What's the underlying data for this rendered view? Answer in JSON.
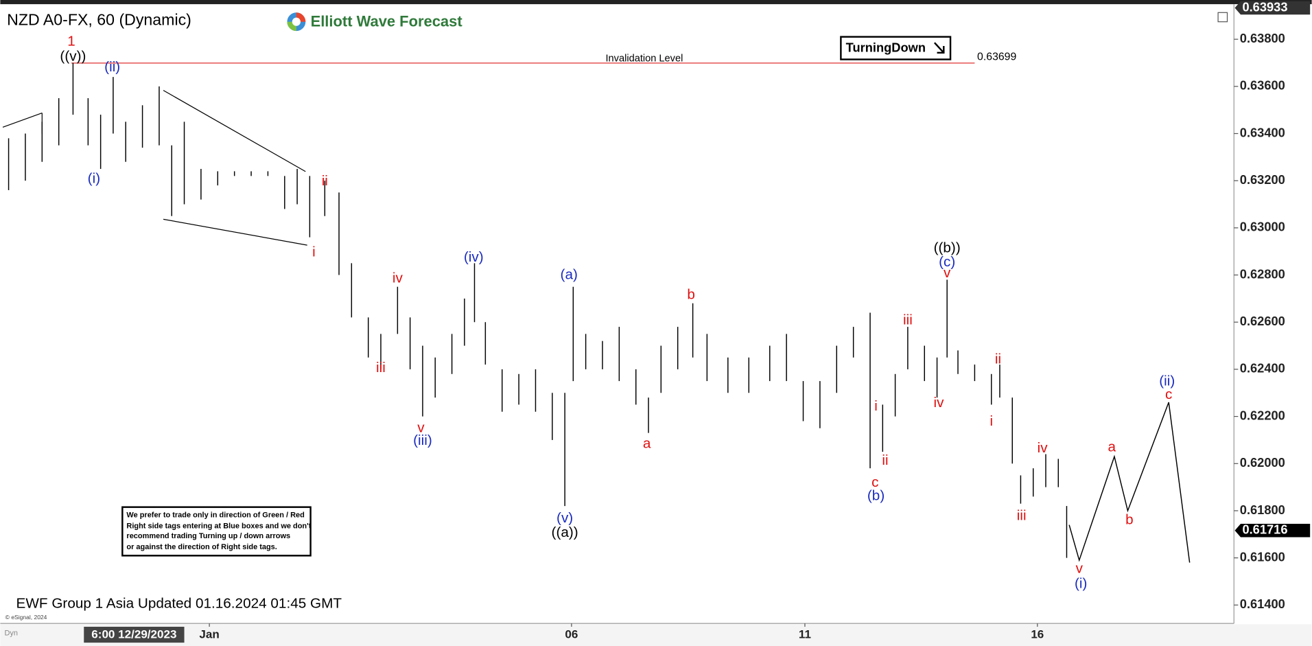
{
  "chart_data": {
    "type": "ohlc",
    "title": "NZD A0-FX, 60 (Dynamic)",
    "brand": "Elliott Wave Forecast",
    "signal": "TurningDown",
    "updated": "EWF Group 1 Asia Updated 01.16.2024 01:45 GMT",
    "copyright": "© eSignal, 2024",
    "mode": "Dyn",
    "cursor_time": "6:00 12/29/2023",
    "note": [
      "We prefer to trade only in direction of Green / Red",
      "Right side tags entering at Blue boxes and we don't",
      "recommend trading Turning up / down arrows",
      "or against the direction of Right side tags."
    ],
    "xlim": [
      0,
      147.5
    ],
    "ylim": [
      0.61322,
      0.63931
    ],
    "xticks": [
      {
        "value": 25,
        "label": "Jan"
      },
      {
        "value": 68.3,
        "label": "06"
      },
      {
        "value": 96.2,
        "label": "11"
      },
      {
        "value": 124,
        "label": "16"
      }
    ],
    "yticks": [
      {
        "value": 0.614,
        "label": "0.61400"
      },
      {
        "value": 0.616,
        "label": "0.61600"
      },
      {
        "value": 0.618,
        "label": "0.61800"
      },
      {
        "value": 0.62,
        "label": "0.62000"
      },
      {
        "value": 0.622,
        "label": "0.62200"
      },
      {
        "value": 0.624,
        "label": "0.62400"
      },
      {
        "value": 0.626,
        "label": "0.62600"
      },
      {
        "value": 0.628,
        "label": "0.62800"
      },
      {
        "value": 0.63,
        "label": "0.63000"
      },
      {
        "value": 0.632,
        "label": "0.63200"
      },
      {
        "value": 0.634,
        "label": "0.63400"
      },
      {
        "value": 0.636,
        "label": "0.63600"
      },
      {
        "value": 0.638,
        "label": "0.63800"
      }
    ],
    "price_markers": [
      {
        "value": 0.63933,
        "label": "0.63933"
      },
      {
        "value": 0.61716,
        "label": "0.61716"
      }
    ],
    "invalidation": {
      "text": "Invalidation Level",
      "value": 0.63699,
      "label": "0.63699",
      "color": "#e03030"
    },
    "series": [
      {
        "color": "#000000",
        "x": [
          1,
          3,
          5,
          7,
          8.7,
          10.5,
          12,
          13.5,
          15,
          17,
          19,
          20.5,
          22,
          24,
          26,
          28,
          30,
          32,
          34,
          35.5,
          37,
          38.8,
          40.5,
          42,
          44,
          45.5,
          47.5,
          49,
          50.5,
          52,
          54,
          55.5,
          56.7,
          58,
          60,
          62,
          64,
          66,
          67.5,
          68.5,
          70,
          72,
          74,
          76,
          77.5,
          79,
          81,
          82.8,
          84.5,
          87,
          89.5,
          92,
          94,
          96,
          98,
          100,
          102,
          104,
          105.5,
          107,
          108.5,
          110.5,
          112,
          113.2,
          114.5,
          116.5,
          118.5,
          119.5,
          121,
          122,
          123.5,
          125,
          126.5,
          127.5
        ],
        "high": [
          0.6338,
          0.634,
          0.6345,
          0.6355,
          0.637,
          0.6355,
          0.6348,
          0.6364,
          0.6345,
          0.6352,
          0.636,
          0.6335,
          0.6345,
          0.6325,
          0.6324,
          0.6324,
          0.6324,
          0.6324,
          0.6322,
          0.6325,
          0.6322,
          0.632,
          0.6315,
          0.6285,
          0.6262,
          0.6255,
          0.6275,
          0.6262,
          0.625,
          0.6245,
          0.6255,
          0.627,
          0.6285,
          0.626,
          0.624,
          0.6238,
          0.624,
          0.623,
          0.623,
          0.6275,
          0.6255,
          0.6252,
          0.6258,
          0.624,
          0.6228,
          0.625,
          0.6258,
          0.6268,
          0.6255,
          0.6245,
          0.6245,
          0.625,
          0.6255,
          0.6235,
          0.6235,
          0.625,
          0.6258,
          0.6264,
          0.6225,
          0.6238,
          0.6258,
          0.625,
          0.6245,
          0.6278,
          0.6248,
          0.6242,
          0.6238,
          0.6242,
          0.6228,
          0.6195,
          0.6198,
          0.6204,
          0.6202,
          0.6182
        ],
        "low": [
          0.6316,
          0.632,
          0.6328,
          0.6335,
          0.6348,
          0.6335,
          0.6325,
          0.634,
          0.6328,
          0.6334,
          0.6335,
          0.6305,
          0.631,
          0.6312,
          0.6318,
          0.6322,
          0.6322,
          0.6322,
          0.6308,
          0.631,
          0.6296,
          0.6305,
          0.628,
          0.6262,
          0.6245,
          0.624,
          0.6255,
          0.624,
          0.622,
          0.6228,
          0.6238,
          0.625,
          0.626,
          0.6242,
          0.6222,
          0.6225,
          0.6222,
          0.621,
          0.6182,
          0.6235,
          0.624,
          0.624,
          0.6235,
          0.6225,
          0.6213,
          0.623,
          0.624,
          0.6245,
          0.6235,
          0.623,
          0.623,
          0.6235,
          0.6235,
          0.6218,
          0.6215,
          0.623,
          0.6245,
          0.6198,
          0.6205,
          0.622,
          0.624,
          0.6235,
          0.6228,
          0.6245,
          0.6238,
          0.6235,
          0.6225,
          0.6228,
          0.62,
          0.6183,
          0.6186,
          0.619,
          0.619,
          0.616
        ]
      }
    ],
    "projection": {
      "color": "#000000",
      "x": [
        127.8,
        129,
        133.2,
        134.8,
        139.7,
        142.2
      ],
      "values": [
        0.6174,
        0.6159,
        0.6203,
        0.618,
        0.6226,
        0.6158
      ]
    },
    "annotations": [
      {
        "text": "1",
        "color": "#e01010"
      },
      {
        "text": "((v))",
        "color": "#000000"
      },
      {
        "text": "(ii)",
        "color": "#1a2bc0"
      },
      {
        "text": "(i)",
        "color": "#1a2bc0"
      },
      {
        "text": "i",
        "color": "#e01010"
      },
      {
        "text": "ii",
        "color": "#e01010"
      },
      {
        "text": "iii",
        "color": "#e01010"
      },
      {
        "text": "iv",
        "color": "#e01010"
      },
      {
        "text": "v",
        "color": "#e01010"
      },
      {
        "text": "(iii)",
        "color": "#1a2bc0"
      },
      {
        "text": "(iv)",
        "color": "#1a2bc0"
      },
      {
        "text": "(a)",
        "color": "#1a2bc0"
      },
      {
        "text": "(v)",
        "color": "#1a2bc0"
      },
      {
        "text": "((a))",
        "color": "#000000"
      },
      {
        "text": "a",
        "color": "#e01010"
      },
      {
        "text": "b",
        "color": "#e01010"
      },
      {
        "text": "i",
        "color": "#e01010"
      },
      {
        "text": "ii",
        "color": "#e01010"
      },
      {
        "text": "c",
        "color": "#e01010"
      },
      {
        "text": "(b)",
        "color": "#1a2bc0"
      },
      {
        "text": "iii",
        "color": "#e01010"
      },
      {
        "text": "iv",
        "color": "#e01010"
      },
      {
        "text": "((b))",
        "color": "#000000"
      },
      {
        "text": "(c)",
        "color": "#1a2bc0"
      },
      {
        "text": "v",
        "color": "#e01010"
      },
      {
        "text": "ii",
        "color": "#e01010"
      },
      {
        "text": "i",
        "color": "#e01010"
      },
      {
        "text": "iii",
        "color": "#e01010"
      },
      {
        "text": "iv",
        "color": "#e01010"
      },
      {
        "text": "v",
        "color": "#e01010"
      },
      {
        "text": "(i)",
        "color": "#1a2bc0"
      },
      {
        "text": "a",
        "color": "#e01010"
      },
      {
        "text": "b",
        "color": "#e01010"
      },
      {
        "text": "(ii)",
        "color": "#1a2bc0"
      },
      {
        "text": "c",
        "color": "#e01010"
      }
    ]
  }
}
